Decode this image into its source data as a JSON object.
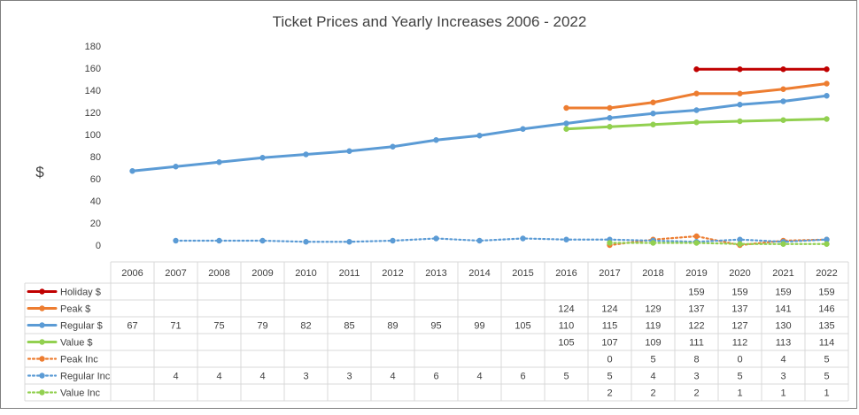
{
  "chart_data": {
    "type": "line",
    "title": "Ticket Prices and Yearly Increases 2006 - 2022",
    "ylabel": "$",
    "xlabel": "",
    "ylim": [
      0,
      180
    ],
    "yticks": [
      0,
      20,
      40,
      60,
      80,
      100,
      120,
      140,
      160,
      180
    ],
    "grid": false,
    "legend": "data-table",
    "categories": [
      "2006",
      "2007",
      "2008",
      "2009",
      "2010",
      "2011",
      "2012",
      "2013",
      "2014",
      "2015",
      "2016",
      "2017",
      "2018",
      "2019",
      "2020",
      "2021",
      "2022"
    ],
    "series": [
      {
        "name": "Holiday $",
        "color": "#c00000",
        "style": "solid",
        "values": [
          null,
          null,
          null,
          null,
          null,
          null,
          null,
          null,
          null,
          null,
          null,
          null,
          null,
          159,
          159,
          159,
          159
        ]
      },
      {
        "name": "Peak $",
        "color": "#ed7d31",
        "style": "solid",
        "values": [
          null,
          null,
          null,
          null,
          null,
          null,
          null,
          null,
          null,
          null,
          124,
          124,
          129,
          137,
          137,
          141,
          146
        ]
      },
      {
        "name": "Regular $",
        "color": "#5b9bd5",
        "style": "solid",
        "values": [
          67,
          71,
          75,
          79,
          82,
          85,
          89,
          95,
          99,
          105,
          110,
          115,
          119,
          122,
          127,
          130,
          135
        ]
      },
      {
        "name": "Value $",
        "color": "#92d050",
        "style": "solid",
        "values": [
          null,
          null,
          null,
          null,
          null,
          null,
          null,
          null,
          null,
          null,
          105,
          107,
          109,
          111,
          112,
          113,
          114
        ]
      },
      {
        "name": "Peak Inc",
        "color": "#ed7d31",
        "style": "dotted",
        "values": [
          null,
          null,
          null,
          null,
          null,
          null,
          null,
          null,
          null,
          null,
          null,
          0,
          5,
          8,
          0,
          4,
          5
        ]
      },
      {
        "name": "Regular Inc",
        "color": "#5b9bd5",
        "style": "dotted",
        "values": [
          null,
          4,
          4,
          4,
          3,
          3,
          4,
          6,
          4,
          6,
          5,
          5,
          4,
          3,
          5,
          3,
          5
        ]
      },
      {
        "name": "Value Inc",
        "color": "#92d050",
        "style": "dotted",
        "values": [
          null,
          null,
          null,
          null,
          null,
          null,
          null,
          null,
          null,
          null,
          null,
          2,
          2,
          2,
          1,
          1,
          1
        ]
      }
    ]
  }
}
